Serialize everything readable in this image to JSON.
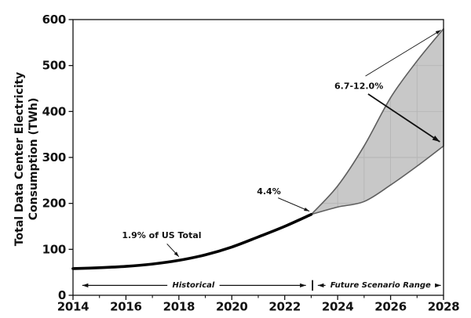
{
  "figure": {
    "y_axis": {
      "label_line1": "Total Data Center Electricity",
      "label_line2": "Consumption (TWh)",
      "min": 0,
      "max": 600,
      "tick_labels": [
        "0",
        "100",
        "200",
        "300",
        "400",
        "500",
        "600"
      ]
    },
    "x_axis": {
      "min": 2014,
      "max": 2028,
      "tick_labels": [
        "2014",
        "2016",
        "2018",
        "2020",
        "2022",
        "2024",
        "2026",
        "2028"
      ],
      "minor_years": [
        2015,
        2017,
        2019,
        2021,
        2023,
        2025,
        2027
      ]
    },
    "colors": {
      "axis": "#111111",
      "historical_line": "#000000",
      "band_fill": "#c8c8c8",
      "band_edge": "#5e5e5e",
      "band_grid": "#b5b5b5",
      "text": "#111111"
    }
  },
  "chart_data": {
    "type": "area",
    "title": "",
    "xlabel": "",
    "ylabel": "Total Data Center Electricity Consumption (TWh)",
    "xlim": [
      2014,
      2028
    ],
    "ylim": [
      0,
      600
    ],
    "grid": "faint gridlines visible only inside shaded scenario band",
    "legend": "none",
    "series": [
      {
        "name": "historical",
        "style": "thick-black-line",
        "x": [
          2014,
          2015,
          2016,
          2017,
          2018,
          2019,
          2020,
          2021,
          2022,
          2023
        ],
        "values": [
          58,
          60,
          63,
          68,
          76,
          88,
          105,
          127,
          150,
          176
        ]
      },
      {
        "name": "future-scenario-upper-bound",
        "style": "band-edge",
        "x": [
          2023,
          2024,
          2025,
          2026,
          2027,
          2028
        ],
        "values": [
          176,
          238,
          325,
          430,
          510,
          580
        ]
      },
      {
        "name": "future-scenario-lower-bound",
        "style": "band-edge",
        "x": [
          2023,
          2024,
          2025,
          2026,
          2027,
          2028
        ],
        "values": [
          176,
          192,
          204,
          240,
          281,
          325
        ]
      }
    ],
    "annotations": [
      {
        "id": "us-total",
        "text": "1.9% of US Total",
        "text_at": {
          "year": 2017.35,
          "twh": 130
        },
        "arrow_from": {
          "year": 2017.55,
          "twh": 112
        },
        "arrow_to": {
          "year": 2018.0,
          "twh": 84
        },
        "weight": "thin"
      },
      {
        "id": "pct-2023",
        "text": "4.4%",
        "text_at": {
          "year": 2021.4,
          "twh": 226
        },
        "arrow_from": {
          "year": 2021.75,
          "twh": 212
        },
        "arrow_to": {
          "year": 2022.93,
          "twh": 183
        },
        "weight": "thin"
      },
      {
        "id": "pct-2028",
        "text": "6.7-12.0%",
        "text_at": {
          "year": 2024.8,
          "twh": 455
        },
        "arrows": [
          {
            "from": {
              "year": 2025.05,
              "twh": 477
            },
            "to": {
              "year": 2027.9,
              "twh": 577
            },
            "weight": "thin"
          },
          {
            "from": {
              "year": 2025.15,
              "twh": 438
            },
            "to": {
              "year": 2027.86,
              "twh": 334
            },
            "weight": "thick"
          }
        ]
      }
    ],
    "spans": [
      {
        "id": "historical-span",
        "text": "Historical",
        "twh": 21.5,
        "from_year": 2014.35,
        "to_year": 2022.8,
        "text_year": 2018.55
      },
      {
        "id": "future-span",
        "text": "Future Scenario Range",
        "twh": 21.5,
        "from_year": 2023.25,
        "to_year": 2027.9,
        "text_year": 2025.62
      },
      {
        "id": "divider",
        "year": 2023.05,
        "twh_from": 10,
        "twh_to": 33
      }
    ]
  }
}
